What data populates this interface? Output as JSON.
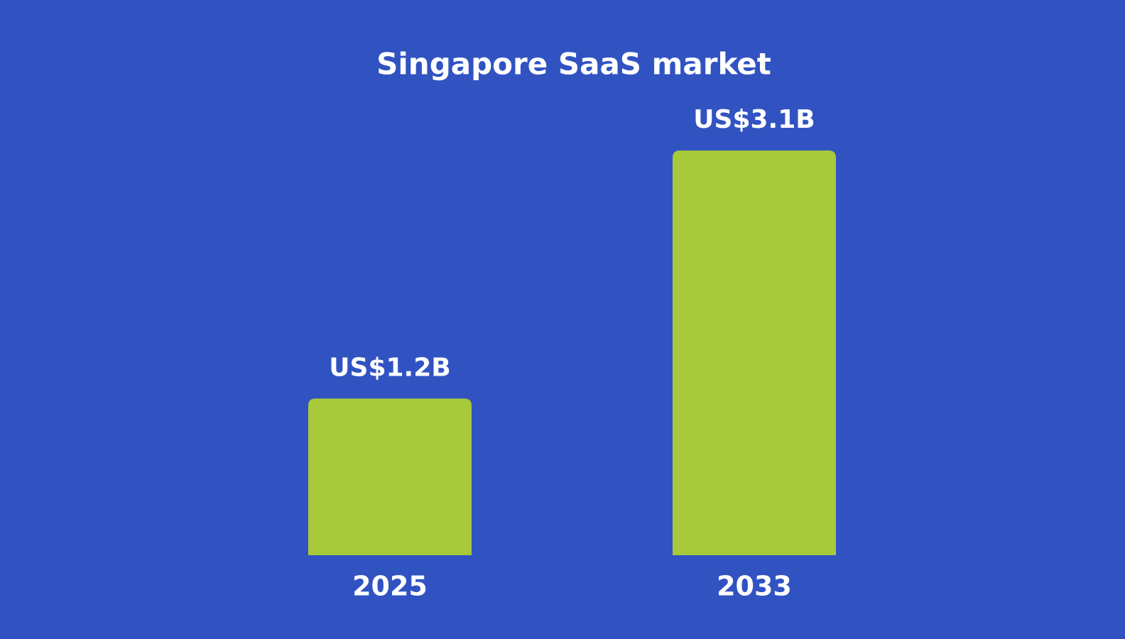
{
  "chart_data": {
    "type": "bar",
    "title": "Singapore SaaS market",
    "categories": [
      "2025",
      "2033"
    ],
    "values": [
      1.2,
      3.1
    ],
    "value_labels": [
      "US$1.2B",
      "US$3.1B"
    ],
    "color": "#a8c93a",
    "background": "#3153c2"
  }
}
